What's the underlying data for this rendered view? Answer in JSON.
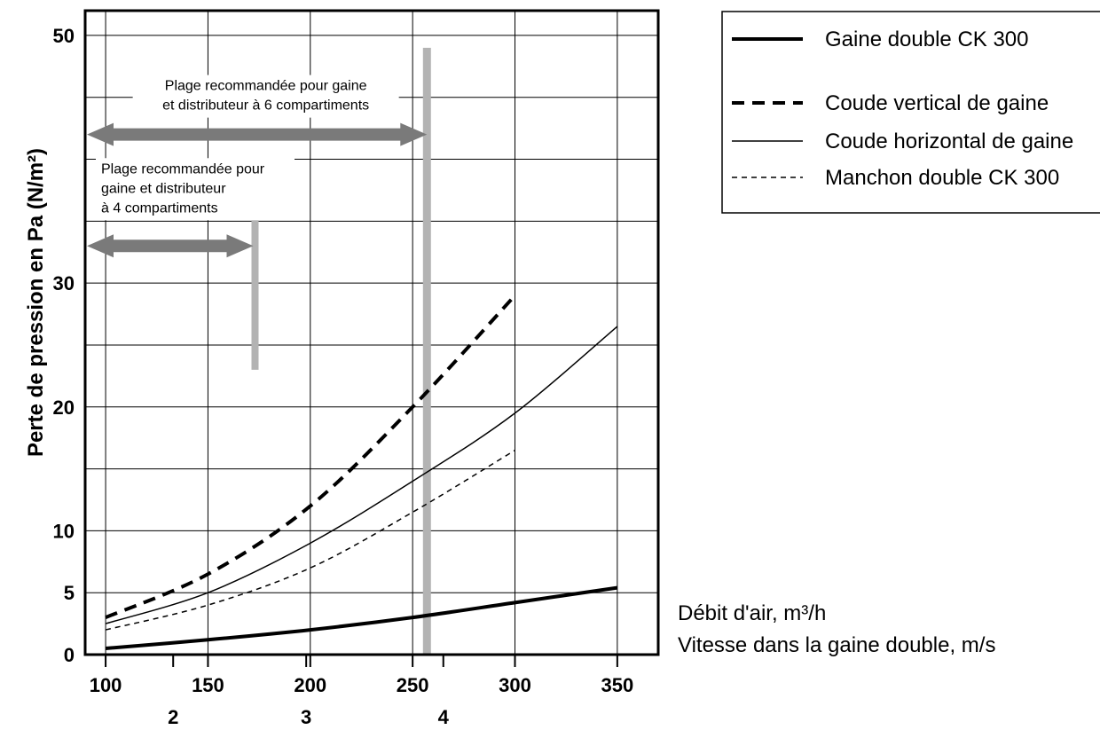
{
  "chart_data": {
    "type": "line",
    "ylabel": "Perte de pression en Pa (N/m²)",
    "xlabel": "Débit d'air, m³/h",
    "xlabel2": "Vitesse dans la gaine double, m/s",
    "xlim": [
      90,
      370
    ],
    "ylim": [
      0,
      52
    ],
    "x_ticks": [
      100,
      150,
      200,
      250,
      300,
      350
    ],
    "x_ticks_secondary": [
      {
        "x": 133,
        "label": "2"
      },
      {
        "x": 198,
        "label": "3"
      },
      {
        "x": 265,
        "label": "4"
      }
    ],
    "y_ticks": [
      0,
      5,
      10,
      20,
      30,
      50
    ],
    "grid_x": [
      100,
      150,
      200,
      250,
      300,
      350
    ],
    "grid_y": [
      5,
      10,
      15,
      20,
      25,
      30,
      35,
      40,
      45,
      50
    ],
    "grid": true,
    "legend_position": "top-right",
    "series": [
      {
        "name": "Gaine double CK 300",
        "style": "thick-solid",
        "x": [
          100,
          150,
          200,
          250,
          300,
          350
        ],
        "y": [
          0.5,
          1.2,
          2.0,
          3.0,
          4.2,
          5.4
        ]
      },
      {
        "name": "Coude vertical de gaine",
        "style": "thick-dashed",
        "x": [
          100,
          150,
          200,
          250,
          300
        ],
        "y": [
          3.0,
          6.5,
          12.0,
          20.0,
          29.0
        ]
      },
      {
        "name": "Coude horizontal de gaine",
        "style": "thin-solid",
        "x": [
          100,
          150,
          200,
          250,
          300,
          350
        ],
        "y": [
          2.5,
          5.0,
          9.0,
          14.0,
          19.5,
          26.5
        ]
      },
      {
        "name": "Manchon double CK 300",
        "style": "thin-dashed",
        "x": [
          100,
          150,
          200,
          250,
          300
        ],
        "y": [
          2.0,
          4.0,
          7.0,
          11.5,
          16.5
        ]
      }
    ],
    "annotations": [
      {
        "text_lines": [
          "Plage recommandée pour gaine",
          "et distributeur à 6 compartiments"
        ],
        "x_from": 90,
        "x_to": 257,
        "y": 42,
        "bar_x": 257,
        "bar_y": [
          0,
          49
        ]
      },
      {
        "text_lines": [
          "Plage recommandée pour",
          "gaine et distributeur",
          "à 4 compartiments"
        ],
        "x_from": 90,
        "x_to": 173,
        "y": 33,
        "bar_x": 173,
        "bar_y": [
          23,
          37
        ]
      }
    ]
  }
}
